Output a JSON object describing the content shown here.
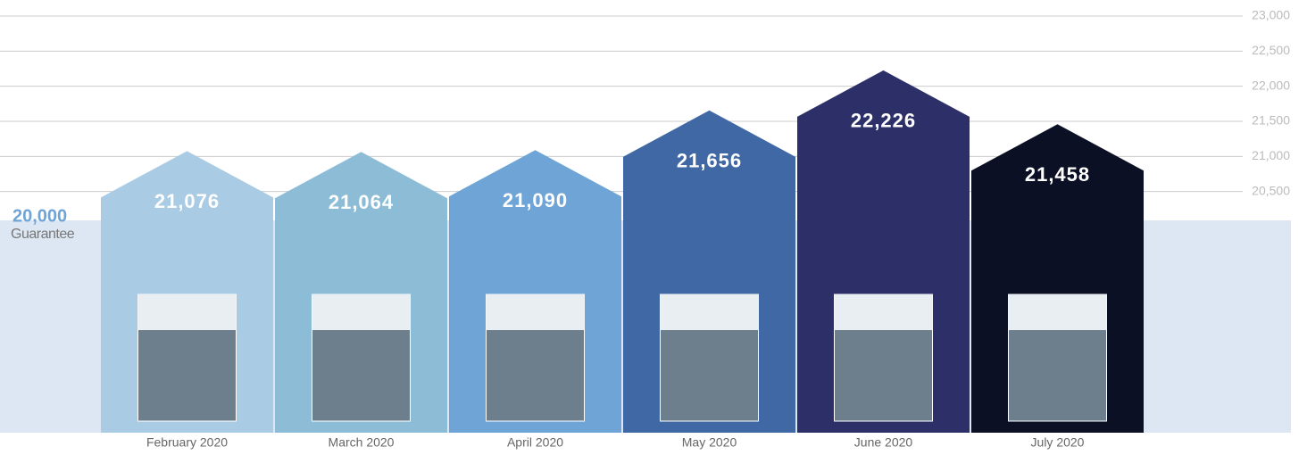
{
  "chart_data": {
    "type": "house-bar",
    "categories": [
      "February 2020",
      "March 2020",
      "April 2020",
      "May 2020",
      "June 2020",
      "July 2020"
    ],
    "values": [
      21076,
      21064,
      21090,
      21656,
      22226,
      21458
    ],
    "value_labels": [
      "21,076",
      "21,064",
      "21,090",
      "21,656",
      "22,226",
      "21,458"
    ],
    "colors": [
      "#a9cbe3",
      "#8dbdd6",
      "#6fa4d6",
      "#4068a5",
      "#2d3068",
      "#0c1024"
    ],
    "ylim": [
      20000,
      23000
    ],
    "yticks": [
      {
        "value": 20500,
        "label": "20,500"
      },
      {
        "value": 21000,
        "label": "21,000"
      },
      {
        "value": 21500,
        "label": "21,500"
      },
      {
        "value": 22000,
        "label": "22,000"
      },
      {
        "value": 22500,
        "label": "22,500"
      },
      {
        "value": 23000,
        "label": "23,000"
      }
    ],
    "grid": true,
    "guarantee": {
      "value": 20000,
      "label": "20,000",
      "text": "Guarantee",
      "color": "#dde7f3"
    }
  }
}
